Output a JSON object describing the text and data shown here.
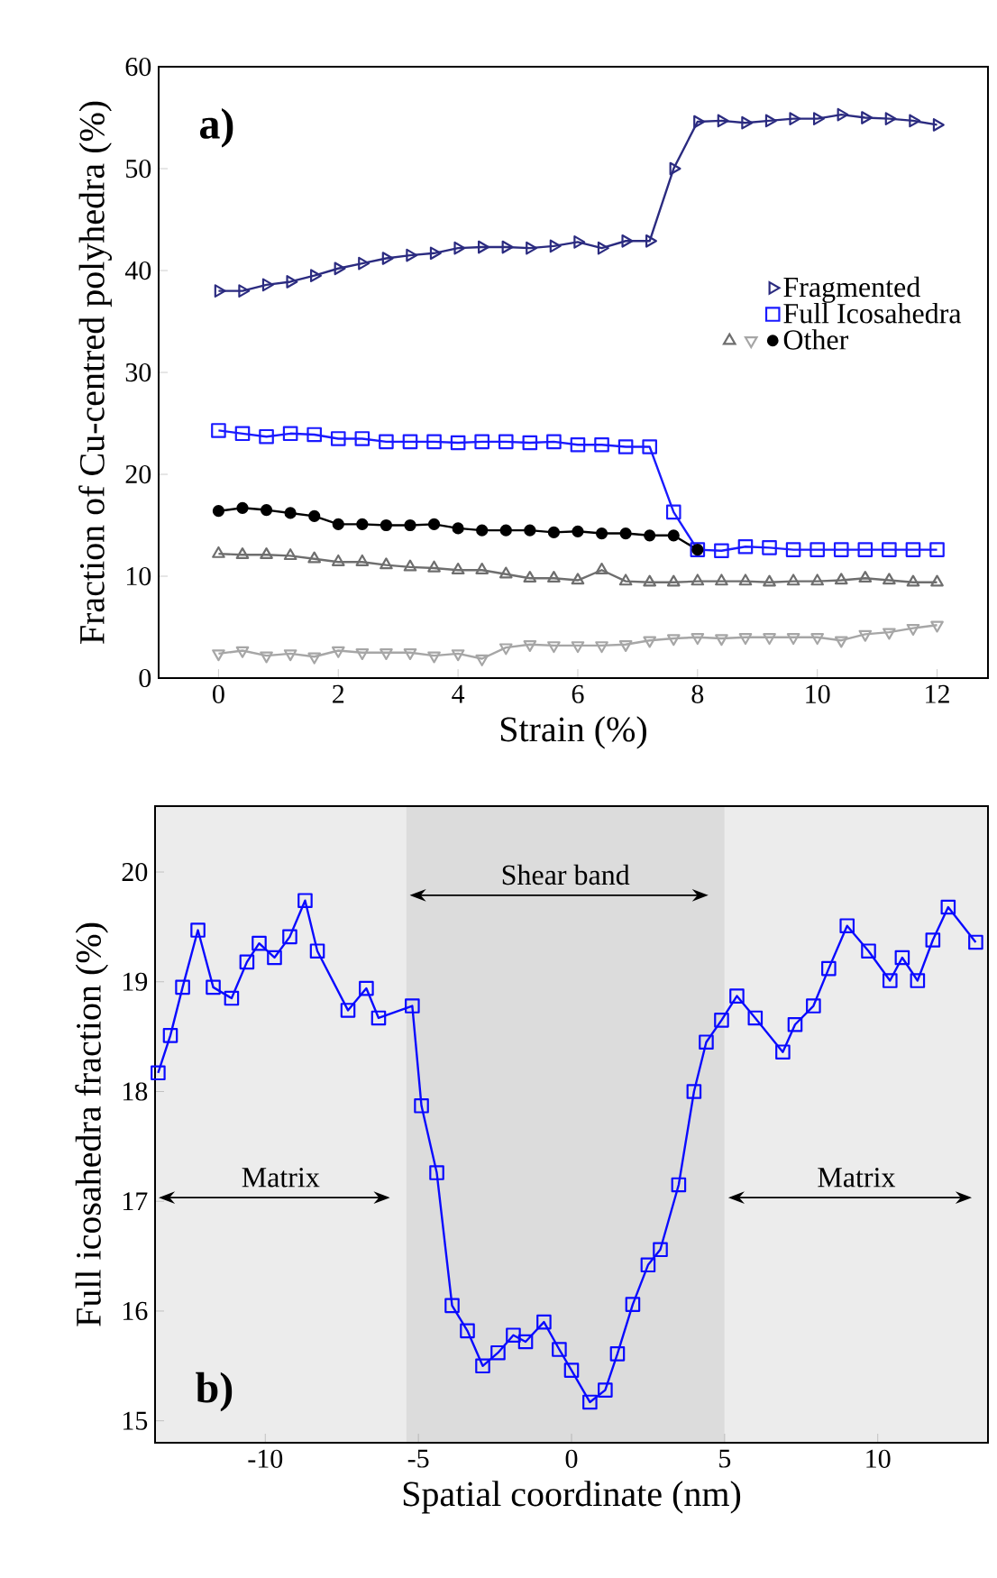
{
  "chart_data": [
    {
      "type": "line",
      "xlabel": "Strain (%)",
      "ylabel": "Fraction of Cu-centred polyhedra (%)",
      "annotations": [
        "**a)**"
      ],
      "x": [
        0,
        0.4,
        0.8,
        1.2,
        1.6,
        2.0,
        2.4,
        2.8,
        3.2,
        3.6,
        4.0,
        4.4,
        4.8,
        5.2,
        5.6,
        6.0,
        6.4,
        6.8,
        7.2,
        7.6,
        8.0,
        8.4,
        8.8,
        9.2,
        9.6,
        10.0,
        10.4,
        10.8,
        11.2,
        11.6,
        12.0
      ],
      "xlim": [
        -1,
        12.85
      ],
      "ylim": [
        0,
        60
      ],
      "xticks": [
        0,
        2,
        4,
        6,
        8,
        10,
        12
      ],
      "yticks": [
        0,
        10,
        20,
        30,
        40,
        50,
        60
      ],
      "legend": "right",
      "series": [
        {
          "name": "Fragmented",
          "color": "#2b2b80",
          "marker": "triangle",
          "values": [
            38.0,
            38.0,
            38.6,
            38.9,
            39.5,
            40.2,
            40.7,
            41.2,
            41.5,
            41.7,
            42.2,
            42.3,
            42.3,
            42.2,
            42.4,
            42.8,
            42.2,
            42.9,
            42.9,
            50.0,
            54.6,
            54.7,
            54.5,
            54.7,
            54.9,
            54.9,
            55.3,
            55.0,
            54.9,
            54.7,
            54.3
          ]
        },
        {
          "name": "Full Icosahedra",
          "color": "#1a1aff",
          "marker": "square",
          "values": [
            24.3,
            24.0,
            23.7,
            24.0,
            23.9,
            23.5,
            23.5,
            23.2,
            23.2,
            23.2,
            23.1,
            23.2,
            23.2,
            23.1,
            23.2,
            22.9,
            22.9,
            22.7,
            22.7,
            16.3,
            12.6,
            12.5,
            12.9,
            12.8,
            12.6,
            12.6,
            12.6,
            12.6,
            12.6,
            12.6,
            12.6
          ]
        },
        {
          "name": "Other",
          "color": "#000000",
          "marker": "circle",
          "values": [
            16.4,
            16.7,
            16.5,
            16.2,
            15.9,
            15.1,
            15.1,
            15.0,
            15.0,
            15.1,
            14.7,
            14.5,
            14.5,
            14.5,
            14.3,
            14.4,
            14.2,
            14.2,
            14.0,
            14.0,
            12.6,
            null,
            null,
            null,
            null,
            null,
            null,
            null,
            null,
            null,
            null
          ]
        },
        {
          "color": "#6e6e6e",
          "marker": "triangle",
          "values": [
            12.2,
            12.1,
            12.1,
            12.0,
            11.7,
            11.4,
            11.4,
            11.1,
            10.9,
            10.8,
            10.6,
            10.6,
            10.2,
            9.8,
            9.8,
            9.6,
            10.6,
            9.5,
            9.4,
            9.4,
            9.5,
            9.5,
            9.5,
            9.4,
            9.5,
            9.5,
            9.6,
            9.8,
            9.6,
            9.4,
            9.4
          ]
        },
        {
          "color": "#a6a6a6",
          "marker": "triangle",
          "values": [
            2.4,
            2.7,
            2.2,
            2.4,
            2.1,
            2.7,
            2.5,
            2.5,
            2.5,
            2.2,
            2.4,
            1.9,
            3.0,
            3.3,
            3.2,
            3.2,
            3.2,
            3.3,
            3.7,
            3.9,
            4.0,
            3.9,
            4.0,
            4.0,
            4.0,
            4.0,
            3.7,
            4.3,
            4.5,
            4.9,
            5.2
          ]
        }
      ]
    },
    {
      "type": "line",
      "xlabel": "Spatial coordinate (nm)",
      "ylabel": "Full icosahedra fraction (%)",
      "annotations": [
        "**b)**"
      ],
      "xlim": [
        -13.6,
        13.6
      ],
      "ylim": [
        14.8,
        20.6
      ],
      "xticks": [
        -10,
        -5,
        0,
        5,
        10
      ],
      "yticks": [
        15,
        16,
        17,
        18,
        19,
        20
      ],
      "marker": "square",
      "bands": [
        {
          "axis": "x",
          "from": -13.6,
          "to": -5.4,
          "label": "Matrix",
          "color": "#ececec"
        },
        {
          "axis": "x",
          "from": -5.4,
          "to": 5,
          "label": "Shear band",
          "color": "#dcdcdc"
        },
        {
          "axis": "x",
          "from": 5,
          "to": 13.6,
          "label": "Matrix",
          "color": "#ececec"
        }
      ],
      "series": [
        {
          "color": "#0a0aff",
          "x": [
            -13.5,
            -13.1,
            -12.7,
            -12.2,
            -11.7,
            -11.1,
            -10.6,
            -10.2,
            -9.7,
            -9.2,
            -8.7,
            -8.3,
            -7.3,
            -6.7,
            -6.3,
            -5.2,
            -4.9,
            -4.4,
            -3.9,
            -3.4,
            -2.9,
            -2.4,
            -1.9,
            -1.5,
            -0.9,
            -0.4,
            0.0,
            0.6,
            1.1,
            1.5,
            2.0,
            2.5,
            2.9,
            3.5,
            4.0,
            4.4,
            4.9,
            5.4,
            6.0,
            6.9,
            7.3,
            7.9,
            8.4,
            9.0,
            9.7,
            10.4,
            10.8,
            11.3,
            11.8,
            12.3,
            13.2
          ],
          "values": [
            18.17,
            18.51,
            18.95,
            19.47,
            18.95,
            18.85,
            19.18,
            19.35,
            19.22,
            19.41,
            19.74,
            19.28,
            18.74,
            18.94,
            18.67,
            18.78,
            17.87,
            17.26,
            16.05,
            15.82,
            15.5,
            15.62,
            15.78,
            15.72,
            15.9,
            15.65,
            15.46,
            15.17,
            15.28,
            15.61,
            16.06,
            16.42,
            16.56,
            17.15,
            18.0,
            18.45,
            18.65,
            18.87,
            18.67,
            18.36,
            18.61,
            18.78,
            19.12,
            19.51,
            19.28,
            19.01,
            19.22,
            19.01,
            19.38,
            19.68,
            19.36
          ]
        }
      ]
    }
  ]
}
